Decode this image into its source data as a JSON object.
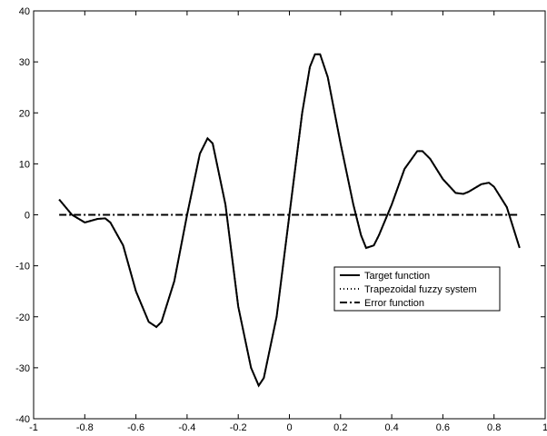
{
  "chart_data": {
    "type": "line",
    "x": [
      -0.9,
      -0.85,
      -0.8,
      -0.75,
      -0.72,
      -0.7,
      -0.65,
      -0.6,
      -0.55,
      -0.52,
      -0.5,
      -0.45,
      -0.4,
      -0.35,
      -0.32,
      -0.3,
      -0.25,
      -0.2,
      -0.15,
      -0.12,
      -0.1,
      -0.05,
      0,
      0.05,
      0.08,
      0.1,
      0.12,
      0.15,
      0.2,
      0.25,
      0.28,
      0.3,
      0.33,
      0.35,
      0.4,
      0.45,
      0.5,
      0.52,
      0.55,
      0.6,
      0.65,
      0.68,
      0.7,
      0.75,
      0.78,
      0.8,
      0.85,
      0.9
    ],
    "series": [
      {
        "name": "Target function",
        "color": "#000000",
        "dash": "solid",
        "values": [
          3,
          0,
          -1.5,
          -0.8,
          -0.7,
          -1.5,
          -6,
          -15,
          -21,
          -22,
          -21,
          -13,
          0,
          12,
          15,
          14,
          2,
          -18,
          -30,
          -33.5,
          -32,
          -20,
          0,
          20,
          29,
          31.5,
          31.5,
          27,
          14,
          2,
          -4,
          -6.5,
          -6,
          -4,
          2,
          9,
          12.5,
          12.5,
          11,
          7,
          4.3,
          4.1,
          4.5,
          6,
          6.3,
          5.5,
          1.5,
          -6.5
        ]
      },
      {
        "name": "Trapezoidal fuzzy system",
        "color": "#000000",
        "dash": "dotted",
        "values": [
          3,
          0,
          -1.5,
          -0.8,
          -0.7,
          -1.5,
          -6,
          -15,
          -21,
          -22,
          -21,
          -13,
          0,
          12,
          15,
          14,
          2,
          -18,
          -30,
          -33.5,
          -32,
          -20,
          0,
          20,
          29,
          31.5,
          31.5,
          27,
          14,
          2,
          -4,
          -6.5,
          -6,
          -4,
          2,
          9,
          12.5,
          12.5,
          11,
          7,
          4.3,
          4.1,
          4.5,
          6,
          6.3,
          5.5,
          1.5,
          -6.5
        ]
      },
      {
        "name": "Error function",
        "color": "#000000",
        "dash": "dashdot",
        "values": [
          0,
          0,
          0,
          0,
          0,
          0,
          0,
          0,
          0,
          0,
          0,
          0,
          0,
          0,
          0,
          0,
          0,
          0,
          0,
          0,
          0,
          0,
          0,
          0,
          0,
          0,
          0,
          0,
          0,
          0,
          0,
          0,
          0,
          0,
          0,
          0,
          0,
          0,
          0,
          0,
          0,
          0,
          0,
          0,
          0,
          0,
          0,
          0
        ]
      }
    ],
    "xlim": [
      -1,
      1
    ],
    "xticks": [
      -1,
      -0.8,
      -0.6,
      -0.4,
      -0.2,
      0,
      0.2,
      0.4,
      0.6,
      0.8,
      1
    ],
    "ylim": [
      -40,
      40
    ],
    "yticks": [
      -40,
      -30,
      -20,
      -10,
      0,
      10,
      20,
      30,
      40
    ],
    "grid": false,
    "legend_position": "lower right"
  }
}
